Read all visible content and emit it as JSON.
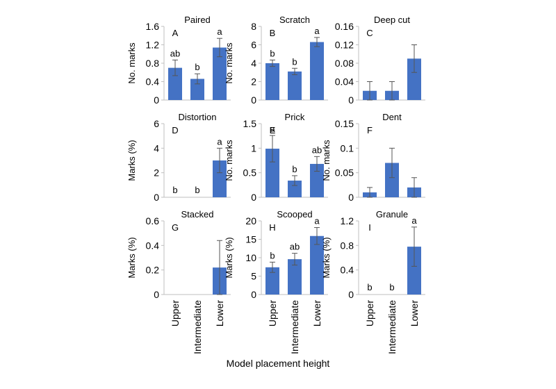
{
  "figure": {
    "xlabel": "Model placement height"
  },
  "chart_data": [
    {
      "type": "bar",
      "title": "Paired",
      "letter": "A",
      "ylabel": "No. marks",
      "categories": [
        "Upper",
        "Intermediate",
        "Lower"
      ],
      "values": [
        0.7,
        0.46,
        1.14
      ],
      "errors": [
        0.17,
        0.11,
        0.2
      ],
      "sig": [
        "ab",
        "b",
        "a"
      ],
      "ylim": [
        0,
        1.6
      ],
      "yticks": [
        "0",
        "0.4",
        "0.8",
        "1.2",
        "1.6"
      ]
    },
    {
      "type": "bar",
      "title": "Scratch",
      "letter": "B",
      "ylabel": "No. marks",
      "categories": [
        "Upper",
        "Intermediate",
        "Lower"
      ],
      "values": [
        4.0,
        3.1,
        6.3
      ],
      "errors": [
        0.35,
        0.35,
        0.5
      ],
      "sig": [
        "b",
        "b",
        "a"
      ],
      "ylim": [
        0,
        8
      ],
      "yticks": [
        "0",
        "2",
        "4",
        "6",
        "8"
      ]
    },
    {
      "type": "bar",
      "title": "Deep cut",
      "letter": "C",
      "ylabel": "",
      "categories": [
        "Upper",
        "Intermediate",
        "Lower"
      ],
      "values": [
        0.02,
        0.02,
        0.09
      ],
      "errors": [
        0.02,
        0.02,
        0.03
      ],
      "sig": [
        "",
        "",
        ""
      ],
      "ylim": [
        0,
        0.16
      ],
      "yticks": [
        "0",
        "0.04",
        "0.08",
        "0.12",
        "0.16"
      ]
    },
    {
      "type": "bar",
      "title": "Distortion",
      "letter": "D",
      "ylabel": "Marks (%)",
      "categories": [
        "Upper",
        "Intermediate",
        "Lower"
      ],
      "values": [
        0,
        0,
        3.0
      ],
      "errors": [
        0,
        0,
        1.0
      ],
      "sig": [
        "b",
        "b",
        "a"
      ],
      "ylim": [
        0,
        6
      ],
      "yticks": [
        "0",
        "2",
        "4",
        "6"
      ]
    },
    {
      "type": "bar",
      "title": "Prick",
      "letter": "E",
      "ylabel": "No. marks",
      "categories": [
        "Upper",
        "Intermediate",
        "Lower"
      ],
      "values": [
        0.99,
        0.34,
        0.68
      ],
      "errors": [
        0.27,
        0.1,
        0.15
      ],
      "sig": [
        "a",
        "b",
        "ab"
      ],
      "ylim": [
        0,
        1.5
      ],
      "yticks": [
        "0",
        "0.5",
        "1",
        "1.5"
      ]
    },
    {
      "type": "bar",
      "title": "Dent",
      "letter": "F",
      "ylabel": "No. marks",
      "categories": [
        "Upper",
        "Intermediate",
        "Lower"
      ],
      "values": [
        0.01,
        0.07,
        0.02
      ],
      "errors": [
        0.01,
        0.03,
        0.02
      ],
      "sig": [
        "",
        "",
        ""
      ],
      "ylim": [
        0,
        0.15
      ],
      "yticks": [
        "0",
        "0.05",
        "0.1",
        "0.15"
      ]
    },
    {
      "type": "bar",
      "title": "Stacked",
      "letter": "G",
      "ylabel": "Marks (%)",
      "categories": [
        "Upper",
        "Intermediate",
        "Lower"
      ],
      "values": [
        0,
        0,
        0.22
      ],
      "errors": [
        0,
        0,
        0.22
      ],
      "sig": [
        "",
        "",
        ""
      ],
      "ylim": [
        0,
        0.6
      ],
      "yticks": [
        "0",
        "0.2",
        "0.4",
        "0.6"
      ]
    },
    {
      "type": "bar",
      "title": "Scooped",
      "letter": "H",
      "ylabel": "Marks (%)",
      "categories": [
        "Upper",
        "Intermediate",
        "Lower"
      ],
      "values": [
        7.4,
        9.6,
        15.9
      ],
      "errors": [
        1.4,
        1.6,
        2.3
      ],
      "sig": [
        "b",
        "ab",
        "a"
      ],
      "ylim": [
        0,
        20
      ],
      "yticks": [
        "0",
        "5",
        "10",
        "15",
        "20"
      ]
    },
    {
      "type": "bar",
      "title": "Granule",
      "letter": "I",
      "ylabel": "Marks (%)",
      "categories": [
        "Upper",
        "Intermediate",
        "Lower"
      ],
      "values": [
        0,
        0,
        0.78
      ],
      "errors": [
        0,
        0,
        0.32
      ],
      "sig": [
        "b",
        "b",
        "a"
      ],
      "ylim": [
        0,
        1.2
      ],
      "yticks": [
        "0",
        "0.4",
        "0.8",
        "1.2"
      ]
    }
  ],
  "colors": {
    "bar": "#4472c4",
    "axis": "#bfbfbf",
    "error": "#555555"
  }
}
